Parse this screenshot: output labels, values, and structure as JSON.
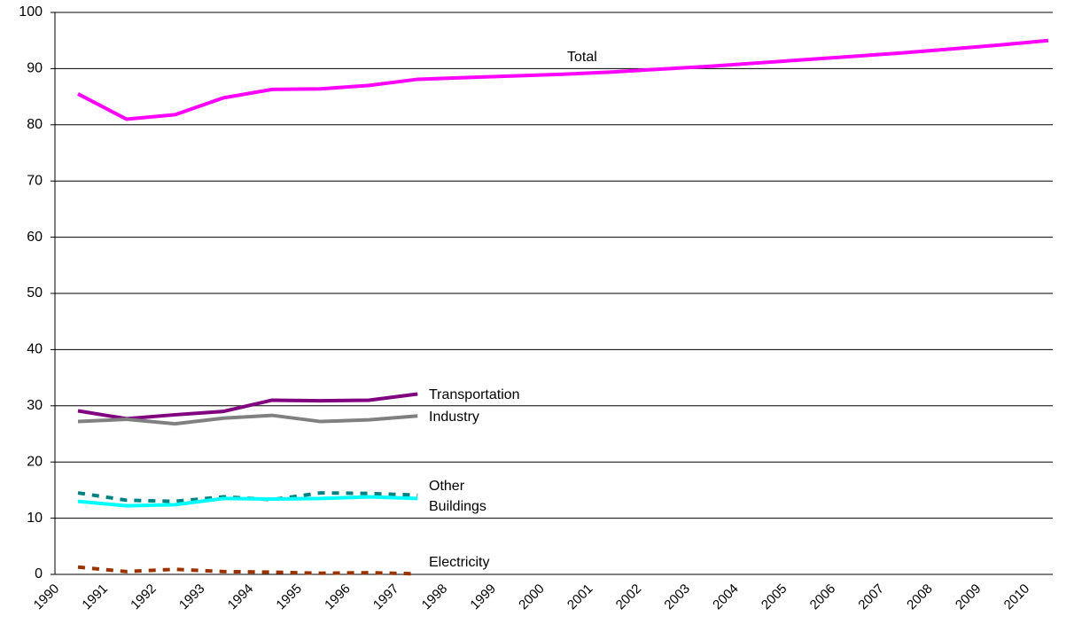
{
  "chart_data": {
    "type": "line",
    "categories": [
      "1990",
      "1991",
      "1992",
      "1993",
      "1994",
      "1995",
      "1996",
      "1997",
      "1998",
      "1999",
      "2000",
      "2001",
      "2002",
      "2003",
      "2004",
      "2005",
      "2006",
      "2007",
      "2008",
      "2009",
      "2010"
    ],
    "series": [
      {
        "name": "Total",
        "color": "#ff00ff",
        "dashed": false,
        "values": [
          85.5,
          81.0,
          81.8,
          84.8,
          86.3,
          86.4,
          87.0,
          88.1,
          88.4,
          88.7,
          89.0,
          89.4,
          89.9,
          90.4,
          91.0,
          91.6,
          92.2,
          92.8,
          93.5,
          94.2,
          95.0
        ]
      },
      {
        "name": "Transportation",
        "color": "#800080",
        "dashed": false,
        "values": [
          29.1,
          27.7,
          28.4,
          29.0,
          31.0,
          30.9,
          31.0,
          32.1,
          null,
          null,
          null,
          null,
          null,
          null,
          null,
          null,
          null,
          null,
          null,
          null,
          null
        ]
      },
      {
        "name": "Industry",
        "color": "#808080",
        "dashed": false,
        "values": [
          27.2,
          27.6,
          26.8,
          27.8,
          28.3,
          27.2,
          27.5,
          28.2,
          null,
          null,
          null,
          null,
          null,
          null,
          null,
          null,
          null,
          null,
          null,
          null,
          null
        ]
      },
      {
        "name": "Other",
        "color": "#008080",
        "dashed": true,
        "values": [
          14.5,
          13.2,
          13.0,
          13.8,
          13.3,
          14.5,
          14.4,
          14.1,
          null,
          null,
          null,
          null,
          null,
          null,
          null,
          null,
          null,
          null,
          null,
          null,
          null
        ]
      },
      {
        "name": "Buildings",
        "color": "#00ffff",
        "dashed": false,
        "values": [
          13.0,
          12.2,
          12.4,
          13.5,
          13.4,
          13.5,
          13.8,
          13.5,
          null,
          null,
          null,
          null,
          null,
          null,
          null,
          null,
          null,
          null,
          null,
          null,
          null
        ]
      },
      {
        "name": "Electricity",
        "color": "#993300",
        "dashed": true,
        "values": [
          1.3,
          0.5,
          0.9,
          0.5,
          0.4,
          0.2,
          0.3,
          0.1,
          null,
          null,
          null,
          null,
          null,
          null,
          null,
          null,
          null,
          null,
          null,
          null,
          null
        ]
      }
    ],
    "ylim": [
      0,
      100
    ],
    "yticks": [
      0,
      10,
      20,
      30,
      40,
      50,
      60,
      70,
      80,
      90,
      100
    ],
    "grid": true
  }
}
